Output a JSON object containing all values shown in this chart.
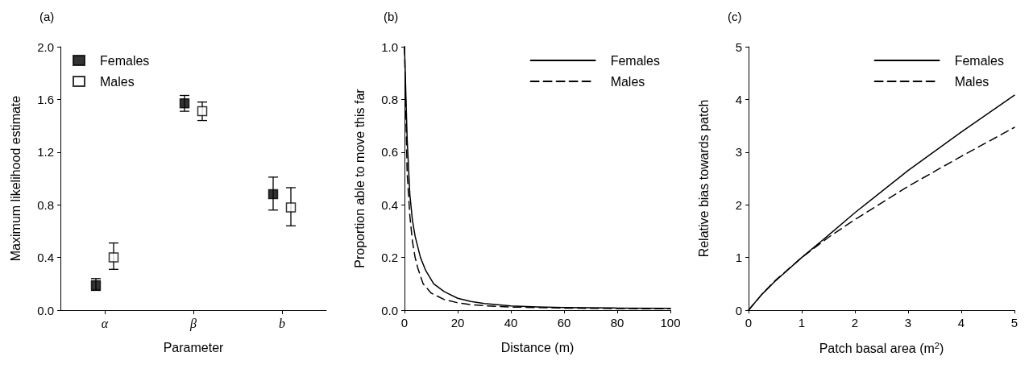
{
  "chart_data": [
    {
      "type": "scatter",
      "title": "(a)",
      "xlabel": "Parameter",
      "ylabel": "Maximum likelihood estimate",
      "categories": [
        "α",
        "β",
        "b"
      ],
      "ylim": [
        0,
        2
      ],
      "yticks": [
        {
          "value": 0,
          "label": "0.0"
        },
        {
          "value": 0.4,
          "label": "0.4"
        },
        {
          "value": 0.8,
          "label": "0.8"
        },
        {
          "value": 1.2,
          "label": "1.2"
        },
        {
          "value": 1.6,
          "label": "1.6"
        },
        {
          "value": 2,
          "label": "2.0"
        }
      ],
      "grid": false,
      "legend": "top left",
      "marker": "square",
      "series": [
        {
          "name": "Females",
          "color": "#000000",
          "values": [
            0.19,
            1.57,
            0.88
          ],
          "errors": [
            [
              0.15,
              0.24
            ],
            [
              1.51,
              1.63
            ],
            [
              0.76,
              1.01
            ]
          ]
        },
        {
          "name": "Males",
          "color": "#000000",
          "values": [
            0.4,
            1.51,
            0.78
          ],
          "errors": [
            [
              0.31,
              0.51
            ],
            [
              1.44,
              1.58
            ],
            [
              0.64,
              0.93
            ]
          ]
        }
      ]
    },
    {
      "type": "line",
      "title": "(b)",
      "xlabel": "Distance (m)",
      "ylabel": "Proportion able to move this far",
      "xlim": [
        0,
        100
      ],
      "xticks": [
        0,
        20,
        40,
        60,
        80,
        100
      ],
      "ylim": [
        0,
        1
      ],
      "yticks": [
        {
          "value": 0,
          "label": "0.0"
        },
        {
          "value": 0.2,
          "label": "0.2"
        },
        {
          "value": 0.4,
          "label": "0.4"
        },
        {
          "value": 0.6,
          "label": "0.6"
        },
        {
          "value": 0.8,
          "label": "0.8"
        },
        {
          "value": 1,
          "label": "1.0"
        }
      ],
      "grid": false,
      "legend": "top right",
      "marker": "none",
      "series": [
        {
          "name": "Females",
          "color": "#000000",
          "line_style": "solid",
          "x": [
            0,
            1,
            2,
            3,
            4,
            6,
            8,
            11,
            15,
            20,
            25,
            30,
            40,
            50,
            60,
            80,
            100
          ],
          "values": [
            1.0,
            0.65,
            0.44,
            0.34,
            0.28,
            0.2,
            0.15,
            0.1,
            0.07,
            0.045,
            0.033,
            0.025,
            0.016,
            0.012,
            0.01,
            0.008,
            0.007
          ]
        },
        {
          "name": "Males",
          "color": "#000000",
          "line_style": "dashed",
          "x": [
            0,
            1,
            2,
            3,
            4,
            5,
            7,
            10,
            15,
            20,
            25,
            30,
            40,
            50,
            60,
            80,
            100
          ],
          "values": [
            1.0,
            0.52,
            0.36,
            0.26,
            0.2,
            0.16,
            0.1,
            0.065,
            0.04,
            0.028,
            0.021,
            0.017,
            0.012,
            0.01,
            0.008,
            0.006,
            0.005
          ]
        }
      ]
    },
    {
      "type": "line",
      "title": "(c)",
      "xlabel": "Patch basal area (m$^{2}$)",
      "ylabel": "Relative bias towards patch",
      "xlim": [
        0,
        5
      ],
      "xticks": [
        0,
        1,
        2,
        3,
        4,
        5
      ],
      "ylim": [
        0,
        5
      ],
      "yticks": [
        0,
        1,
        2,
        3,
        4,
        5
      ],
      "grid": false,
      "legend": "top right",
      "marker": "none",
      "series": [
        {
          "name": "Females",
          "color": "#000000",
          "line_style": "solid",
          "x": [
            0,
            0.25,
            0.5,
            1,
            1.5,
            2,
            3,
            4,
            5
          ],
          "values": [
            0,
            0.3,
            0.55,
            1.0,
            1.42,
            1.85,
            2.65,
            3.38,
            4.08
          ]
        },
        {
          "name": "Males",
          "color": "#000000",
          "line_style": "dashed",
          "x": [
            0,
            0.25,
            0.5,
            1,
            1.5,
            2,
            3,
            4,
            5
          ],
          "values": [
            0,
            0.3,
            0.56,
            1.0,
            1.38,
            1.72,
            2.35,
            2.92,
            3.47
          ]
        }
      ]
    }
  ]
}
